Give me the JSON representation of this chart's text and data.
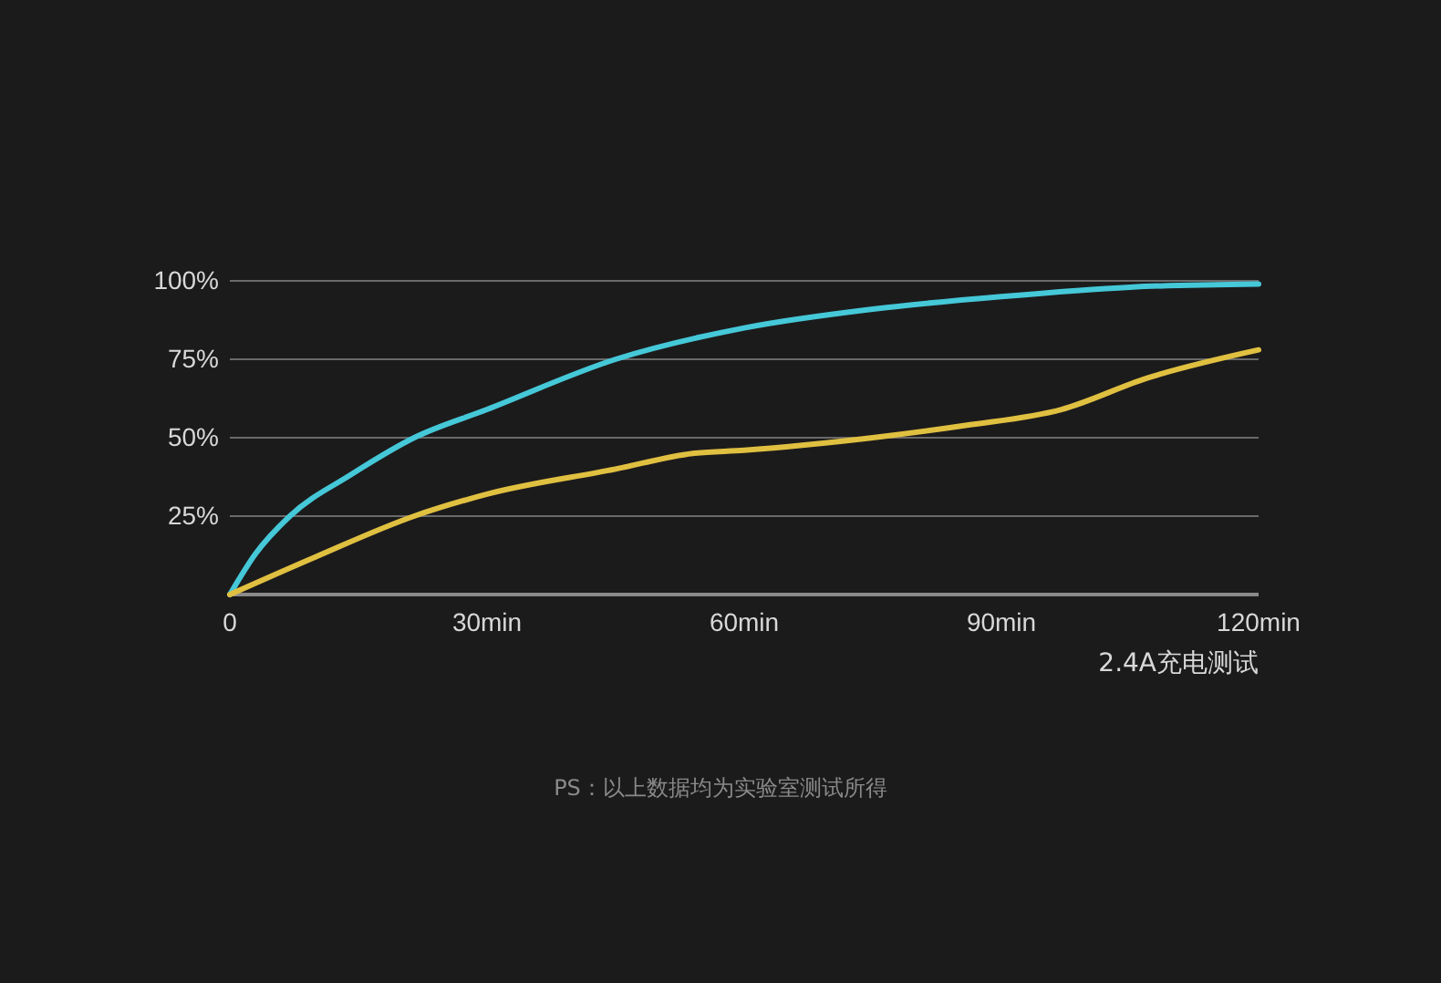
{
  "chart_data": {
    "type": "line",
    "xlabel": "2.4A充电测试",
    "annotations": [
      "PS：以上数据均为实验室测试所得"
    ],
    "xlim": [
      0,
      120
    ],
    "xticks": [
      {
        "value": 0,
        "label": "0"
      },
      {
        "value": 30,
        "label": "30min"
      },
      {
        "value": 60,
        "label": "60min"
      },
      {
        "value": 90,
        "label": "90min"
      },
      {
        "value": 120,
        "label": "120min"
      }
    ],
    "ylim": [
      0,
      100
    ],
    "yticks": [
      {
        "value": 25,
        "label": "25%"
      },
      {
        "value": 50,
        "label": "50%"
      },
      {
        "value": 75,
        "label": "75%"
      },
      {
        "value": 100,
        "label": "100%"
      }
    ],
    "grid": "y",
    "marker": "none",
    "line_style": "solid",
    "series": [
      {
        "color": "#45c8d8",
        "x": [
          0,
          3,
          7,
          14,
          21.5,
          30,
          45,
          60,
          75,
          90,
          105,
          120
        ],
        "values": [
          0,
          13,
          25,
          38,
          50,
          59,
          75,
          85,
          91,
          95,
          98,
          99
        ]
      },
      {
        "color": "#e0c040",
        "x": [
          0,
          10,
          21.5,
          30,
          45,
          54,
          60,
          75,
          86,
          97,
          107,
          120
        ],
        "values": [
          0,
          12,
          25,
          32,
          40,
          45,
          46,
          50,
          54,
          59,
          69,
          78
        ]
      }
    ]
  }
}
